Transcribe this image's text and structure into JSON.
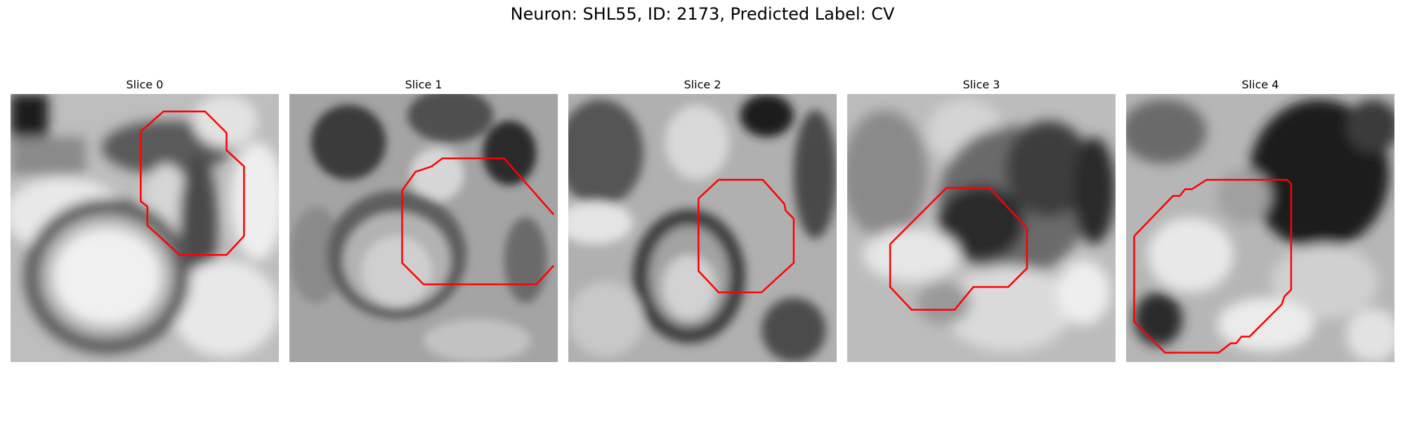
{
  "figure": {
    "title": "Neuron: SHL55, ID: 2173, Predicted Label: CV"
  },
  "colors": {
    "contour": "#ff0000",
    "background": "#ffffff"
  },
  "slices": [
    {
      "title": "Slice 0"
    },
    {
      "title": "Slice 1"
    },
    {
      "title": "Slice 2"
    },
    {
      "title": "Slice 3"
    },
    {
      "title": "Slice 4"
    }
  ]
}
